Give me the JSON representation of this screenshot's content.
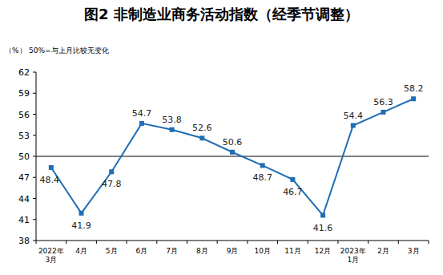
{
  "chart_data": {
    "type": "line",
    "title": "图2 非制造业商务活动指数（经季节调整）",
    "y_label": "（%）",
    "annotation": "50%=与上月比较无变化",
    "categories": [
      "2022年\n3月",
      "4月",
      "5月",
      "6月",
      "7月",
      "8月",
      "9月",
      "10月",
      "11月",
      "12月",
      "2023年\n1月",
      "2月",
      "3月"
    ],
    "values": [
      48.4,
      41.9,
      47.8,
      54.7,
      53.8,
      52.6,
      50.6,
      48.7,
      46.7,
      41.6,
      54.4,
      56.3,
      58.2
    ],
    "baseline": 50,
    "color": "#1f6db5",
    "marker": "square",
    "ylim": [
      38,
      62
    ],
    "yticks": [
      38,
      41,
      44,
      47,
      50,
      53,
      56,
      59,
      62
    ],
    "grid": false,
    "data_labels": true
  }
}
